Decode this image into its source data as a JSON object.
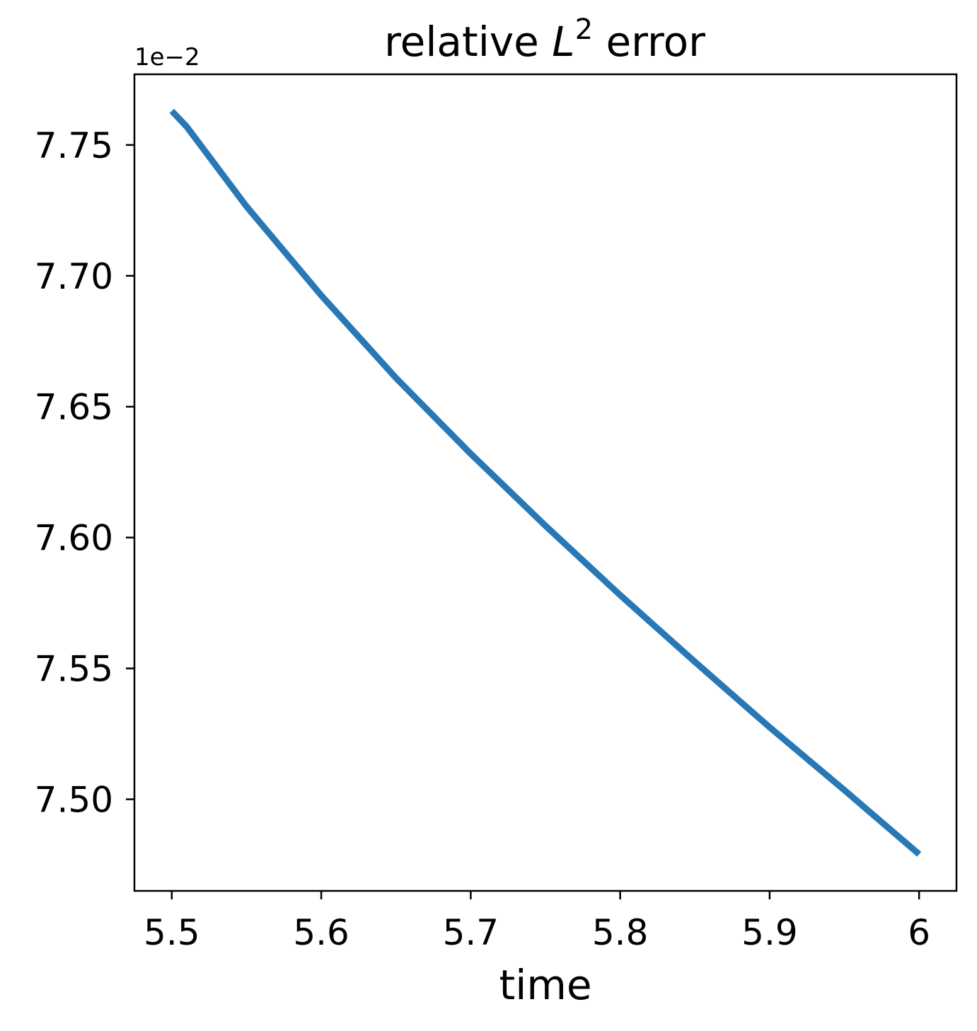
{
  "chart_data": {
    "type": "line",
    "title_prefix": "relative ",
    "title_symbol": "L",
    "title_superscript": "2",
    "title_suffix": " error",
    "xlabel": "time",
    "ylabel": "",
    "y_offset_label": "1e−2",
    "xlim": [
      5.475,
      6.025
    ],
    "ylim": [
      7.465,
      7.777
    ],
    "x_ticks": [
      5.5,
      5.6,
      5.7,
      5.8,
      5.9,
      6.0
    ],
    "x_tick_labels": [
      "5.5",
      "5.6",
      "5.7",
      "5.8",
      "5.9",
      "6"
    ],
    "y_ticks": [
      7.5,
      7.55,
      7.6,
      7.65,
      7.7,
      7.75
    ],
    "y_tick_labels": [
      "7.50",
      "7.55",
      "7.60",
      "7.65",
      "7.70",
      "7.75"
    ],
    "grid": false,
    "series": [
      {
        "color": "#2878b5",
        "x": [
          5.5,
          5.51,
          5.55,
          5.6,
          5.65,
          5.7,
          5.75,
          5.8,
          5.85,
          5.9,
          5.95,
          6.0
        ],
        "y": [
          7.763,
          7.757,
          7.7265,
          7.6925,
          7.661,
          7.632,
          7.6045,
          7.578,
          7.5525,
          7.5275,
          7.5035,
          7.479
        ]
      }
    ]
  }
}
